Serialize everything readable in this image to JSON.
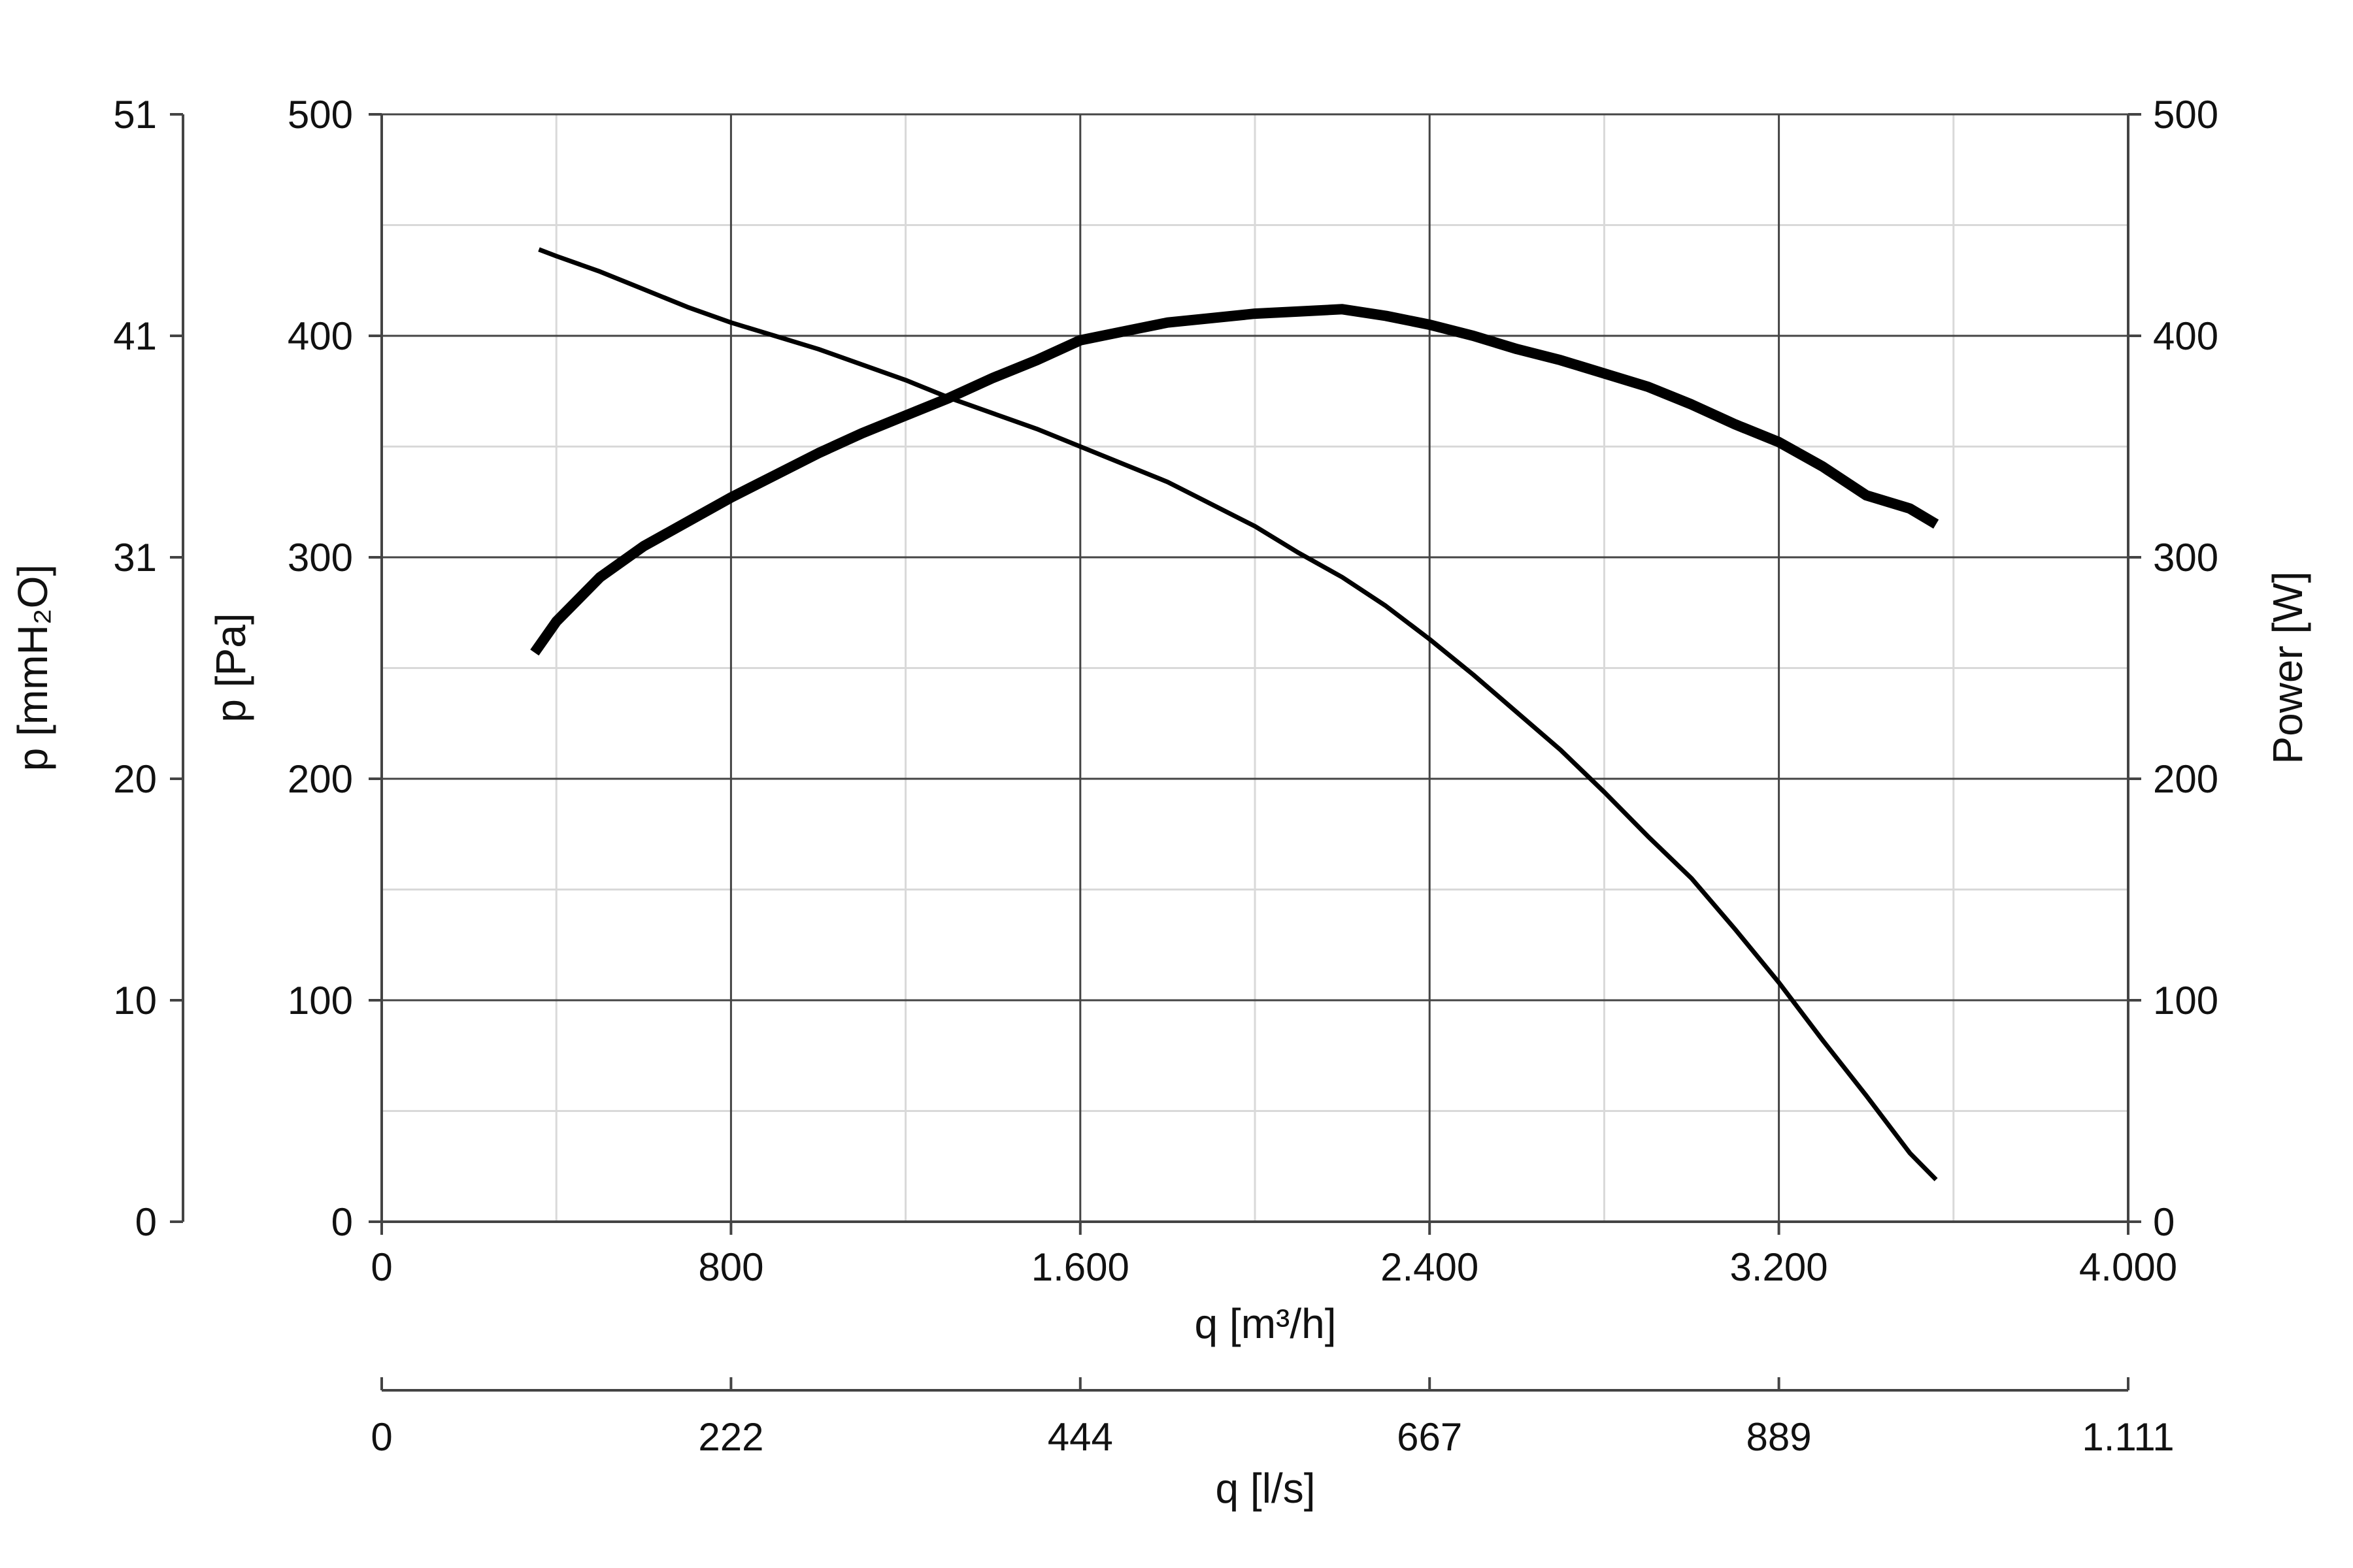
{
  "chart_data": {
    "type": "line",
    "title": "",
    "x_axis": {
      "label": "q [m³/h]",
      "range": [
        0,
        4000
      ],
      "ticks": [
        0,
        800,
        1600,
        2400,
        3200,
        4000
      ],
      "tick_labels": [
        "0",
        "800",
        "1.600",
        "2.400",
        "3.200",
        "4.000"
      ]
    },
    "secondary_x_axis": {
      "label": "q [l/s]",
      "tick_labels": [
        "0",
        "222",
        "444",
        "667",
        "889",
        "1.111"
      ]
    },
    "y_axis": {
      "label": "p [Pa]",
      "range": [
        0,
        500
      ],
      "ticks": [
        0,
        100,
        200,
        300,
        400,
        500
      ],
      "tick_labels": [
        "0",
        "100",
        "200",
        "300",
        "400",
        "500"
      ]
    },
    "outer_y_axis": {
      "label": "p [mmH₂O]",
      "tick_labels": [
        "0",
        "10",
        "20",
        "31",
        "41",
        "51"
      ]
    },
    "right_y_axis": {
      "label": "Power [W]",
      "range": [
        0,
        500
      ],
      "tick_labels": [
        "0",
        "100",
        "200",
        "300",
        "400",
        "500"
      ]
    },
    "grid": true,
    "minor_grid": true,
    "series": [
      {
        "axis": "left",
        "color": "#000000",
        "line_style": "thin",
        "x": [
          360,
          400,
          500,
          600,
          700,
          800,
          900,
          1000,
          1100,
          1200,
          1300,
          1400,
          1500,
          1600,
          1700,
          1800,
          1900,
          2000,
          2100,
          2200,
          2300,
          2400,
          2500,
          2600,
          2700,
          2800,
          2900,
          3000,
          3100,
          3200,
          3300,
          3400,
          3500,
          3560
        ],
        "y": [
          439,
          436,
          429,
          421,
          413,
          406,
          400,
          394,
          387,
          380,
          372,
          365,
          358,
          350,
          342,
          334,
          324,
          314,
          302,
          291,
          278,
          263,
          247,
          230,
          213,
          194,
          174,
          155,
          132,
          108,
          82,
          57,
          31,
          19
        ]
      },
      {
        "axis": "right",
        "color": "#000000",
        "line_style": "thick",
        "x": [
          350,
          400,
          500,
          600,
          700,
          800,
          900,
          1000,
          1100,
          1200,
          1300,
          1400,
          1500,
          1600,
          1700,
          1800,
          1900,
          2000,
          2100,
          2200,
          2300,
          2400,
          2500,
          2600,
          2700,
          2800,
          2900,
          3000,
          3100,
          3200,
          3300,
          3400,
          3500,
          3560
        ],
        "y": [
          257,
          271,
          291,
          305,
          316,
          327,
          337,
          347,
          356,
          364,
          372,
          381,
          389,
          398,
          402,
          406,
          408,
          410,
          411,
          412,
          409,
          405,
          400,
          394,
          389,
          383,
          377,
          369,
          360,
          352,
          341,
          328,
          322,
          315
        ]
      }
    ]
  }
}
